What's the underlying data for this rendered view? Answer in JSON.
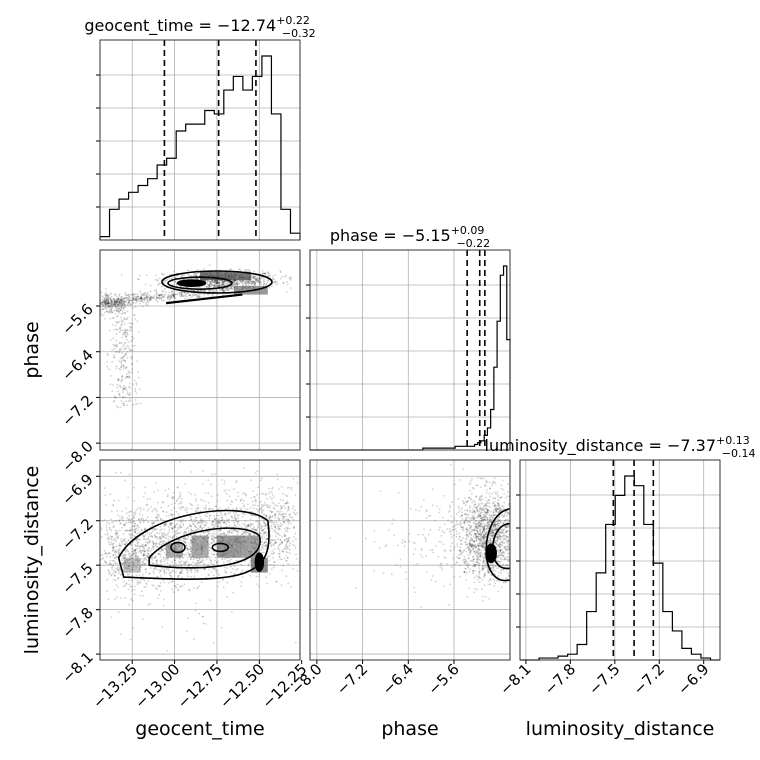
{
  "chart_data": {
    "type": "corner",
    "parameters": [
      "geocent_time",
      "phase",
      "luminosity_distance"
    ],
    "titles": [
      {
        "param": "geocent_time",
        "prefix": "geocent_time = ",
        "median": "−12.74",
        "plus": "+0.22",
        "minus": "−0.32"
      },
      {
        "param": "phase",
        "prefix": "phase = ",
        "median": "−5.15",
        "plus": "+0.09",
        "minus": "−0.22"
      },
      {
        "param": "luminosity_distance",
        "prefix": "luminosity_distance = ",
        "median": "−7.37",
        "plus": "+0.13",
        "minus": "−0.14"
      }
    ],
    "ranges": {
      "geocent_time": [
        -13.44,
        -12.26
      ],
      "phase": [
        -8.12,
        -4.62
      ],
      "luminosity_distance": [
        -8.14,
        -6.79
      ]
    },
    "ticks": {
      "geocent_time": {
        "values": [
          -13.25,
          -13.0,
          -12.75,
          -12.5,
          -12.25
        ],
        "labels": [
          "−13.25",
          "−13.00",
          "−12.75",
          "−12.50",
          "−12.25"
        ]
      },
      "phase": {
        "values": [
          -8.0,
          -7.2,
          -6.4,
          -5.6
        ],
        "labels": [
          "−8.0",
          "−7.2",
          "−6.4",
          "−5.6"
        ]
      },
      "luminosity_distance": {
        "values": [
          -8.1,
          -7.8,
          -7.5,
          -7.2,
          -6.9
        ],
        "labels": [
          "−8.1",
          "−7.8",
          "−7.5",
          "−7.2",
          "−6.9"
        ]
      }
    },
    "axis_labels": {
      "x": [
        "geocent_time",
        "phase",
        "luminosity_distance"
      ],
      "y": [
        "phase",
        "luminosity_distance"
      ]
    },
    "quantiles": {
      "geocent_time": [
        -13.06,
        -12.74,
        -12.52
      ],
      "phase": [
        -5.37,
        -5.15,
        -5.06
      ],
      "luminosity_distance": [
        -7.51,
        -7.37,
        -7.24
      ]
    },
    "histograms": {
      "geocent_time": {
        "edges_range": [
          -13.44,
          -12.26
        ],
        "counts": [
          1,
          9,
          12,
          14,
          16,
          18,
          22,
          24,
          32,
          34,
          34,
          38,
          37,
          44,
          48,
          44,
          48,
          54,
          37,
          9,
          2
        ]
      },
      "phase": {
        "edges_range": [
          -8.12,
          -4.62
        ],
        "counts": [
          0,
          0,
          0,
          0,
          0,
          0,
          0,
          0,
          0,
          0,
          0,
          0,
          0,
          0,
          0,
          0,
          0,
          0,
          0,
          0,
          0,
          0,
          0,
          0,
          0,
          0,
          0,
          0,
          0,
          0,
          0,
          0,
          0,
          0,
          0,
          1,
          1,
          1,
          1,
          1,
          1,
          1,
          1,
          1,
          1,
          2,
          2,
          2,
          2,
          2,
          2,
          3,
          4,
          5,
          8,
          12,
          22,
          45,
          70,
          95,
          100,
          60
        ]
      },
      "luminosity_distance": {
        "edges_range": [
          -8.14,
          -6.79
        ],
        "counts": [
          0,
          0,
          1,
          1,
          2,
          3,
          8,
          25,
          45,
          70,
          85,
          95,
          90,
          70,
          50,
          25,
          15,
          6,
          3,
          1,
          0
        ]
      }
    },
    "scatter_descriptions": {
      "phase_vs_geocent_time": {
        "dense_region": {
          "x": [
            -12.9,
            -12.5
          ],
          "y": [
            -5.3,
            -5.0
          ]
        },
        "tail": {
          "x": [
            -13.4,
            -13.2
          ],
          "y": [
            -7.3,
            -5.5
          ]
        }
      },
      "ld_vs_geocent_time": {
        "dense_region": {
          "x": [
            -13.3,
            -12.45
          ],
          "y": [
            -7.6,
            -7.15
          ]
        }
      },
      "ld_vs_phase": {
        "dense_region": {
          "x": [
            -5.6,
            -4.62
          ],
          "y": [
            -7.65,
            -6.85
          ]
        }
      }
    }
  }
}
